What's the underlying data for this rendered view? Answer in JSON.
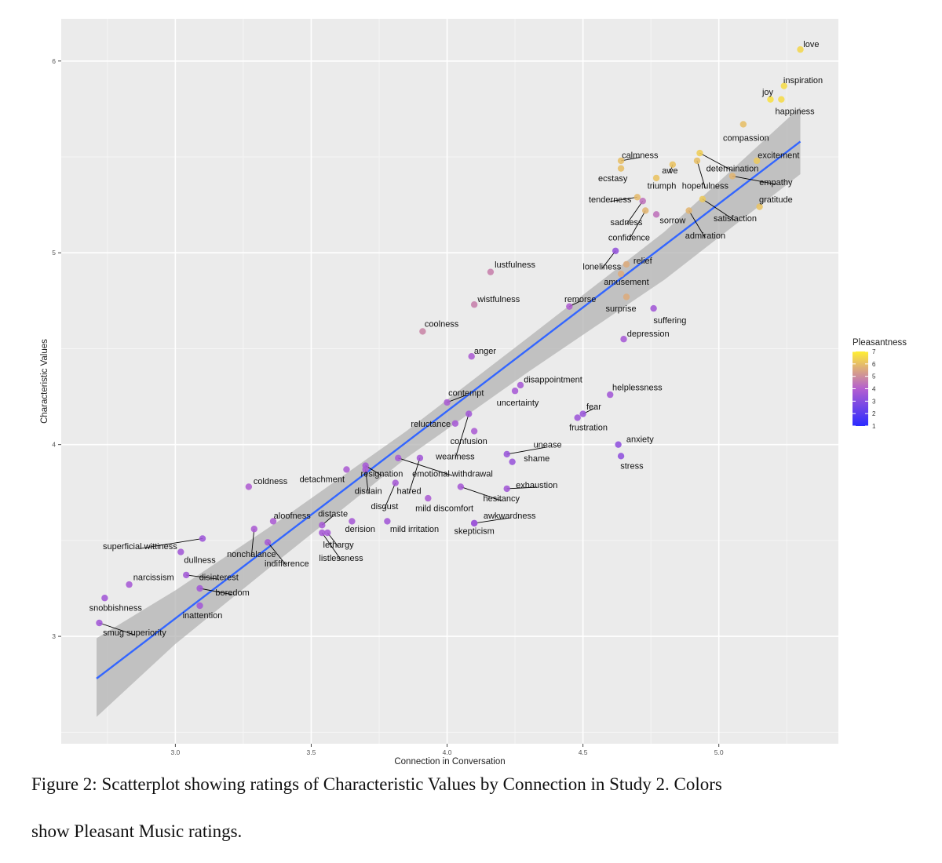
{
  "chart_data": {
    "type": "scatter",
    "xlabel": "Connection in Conversation",
    "ylabel": "Characteristic Values",
    "xlim": [
      2.58,
      5.44
    ],
    "ylim": [
      2.44,
      6.22
    ],
    "x_ticks": [
      3.0,
      3.5,
      4.0,
      4.5,
      5.0
    ],
    "x_tick_labels": [
      "3.0",
      "3.5",
      "4.0",
      "4.5",
      "5.0"
    ],
    "y_ticks": [
      3,
      4,
      5,
      6
    ],
    "y_tick_labels": [
      "3",
      "4",
      "5",
      "6"
    ],
    "grid": true,
    "legend": {
      "title": "Pleasantness",
      "position": "right",
      "ticks": [
        1,
        2,
        3,
        4,
        5,
        6,
        7
      ],
      "tick_labels": [
        "1",
        "2",
        "3",
        "4",
        "5",
        "6",
        "7"
      ],
      "color_low": "#2b2bff",
      "color_mid": "#b45fd0",
      "color_high": "#ffee33"
    },
    "colors": {
      "panel": "#ebebeb",
      "grid": "#ffffff",
      "fit_line": "#3366ff",
      "ribbon": "#b3b3b3",
      "leader": "#000000"
    },
    "fit": {
      "x_start": 2.71,
      "y_start": 2.78,
      "x_end": 5.3,
      "y_end": 5.58
    },
    "ribbon": [
      {
        "x": 2.71,
        "lo": 2.58,
        "hi": 2.99
      },
      {
        "x": 3.0,
        "lo": 2.96,
        "hi": 3.24
      },
      {
        "x": 3.4,
        "lo": 3.42,
        "hi": 3.62
      },
      {
        "x": 3.85,
        "lo": 3.93,
        "hi": 4.07
      },
      {
        "x": 4.3,
        "lo": 4.38,
        "hi": 4.56
      },
      {
        "x": 4.8,
        "lo": 4.86,
        "hi": 5.11
      },
      {
        "x": 5.3,
        "lo": 5.41,
        "hi": 5.76
      }
    ],
    "points": [
      {
        "label": "love",
        "x": 5.3,
        "y": 6.06,
        "pleasantness": 6.5,
        "lx": 5.34,
        "ly": 6.09,
        "anchor": "middle"
      },
      {
        "label": "inspiration",
        "x": 5.24,
        "y": 5.87,
        "pleasantness": 6.6,
        "lx": 5.31,
        "ly": 5.9,
        "anchor": "middle"
      },
      {
        "label": "joy",
        "x": 5.19,
        "y": 5.8,
        "pleasantness": 6.7,
        "lx": 5.18,
        "ly": 5.84,
        "anchor": "middle"
      },
      {
        "label": "happiness",
        "x": 5.23,
        "y": 5.8,
        "pleasantness": 6.6,
        "lx": 5.28,
        "ly": 5.74,
        "anchor": "middle"
      },
      {
        "label": "compassion",
        "x": 5.09,
        "y": 5.67,
        "pleasantness": 6.0,
        "lx": 5.1,
        "ly": 5.6,
        "anchor": "middle"
      },
      {
        "label": "excitement",
        "x": 5.14,
        "y": 5.48,
        "pleasantness": 6.2,
        "lx": 5.22,
        "ly": 5.51,
        "anchor": "middle"
      },
      {
        "label": "calmness",
        "x": 4.64,
        "y": 5.48,
        "pleasantness": 6.0,
        "lx": 4.71,
        "ly": 5.51,
        "anchor": "middle",
        "leader": true
      },
      {
        "label": "ecstasy",
        "x": 4.64,
        "y": 5.44,
        "pleasantness": 6.0,
        "lx": 4.61,
        "ly": 5.39,
        "anchor": "middle"
      },
      {
        "label": "awe",
        "x": 4.83,
        "y": 5.46,
        "pleasantness": 6.1,
        "lx": 4.82,
        "ly": 5.43,
        "anchor": "middle",
        "leader": true
      },
      {
        "label": "determination",
        "x": 4.93,
        "y": 5.52,
        "pleasantness": 6.3,
        "lx": 5.05,
        "ly": 5.44,
        "anchor": "middle",
        "leader": true
      },
      {
        "label": "hopefulness",
        "x": 4.92,
        "y": 5.48,
        "pleasantness": 6.0,
        "lx": 4.95,
        "ly": 5.35,
        "anchor": "middle",
        "leader": true
      },
      {
        "label": "triumph",
        "x": 4.77,
        "y": 5.39,
        "pleasantness": 6.1,
        "lx": 4.79,
        "ly": 5.35,
        "anchor": "middle"
      },
      {
        "label": "empathy",
        "x": 5.05,
        "y": 5.4,
        "pleasantness": 5.8,
        "lx": 5.21,
        "ly": 5.37,
        "anchor": "middle",
        "leader": true
      },
      {
        "label": "tenderness",
        "x": 4.7,
        "y": 5.29,
        "pleasantness": 5.9,
        "lx": 4.6,
        "ly": 5.28,
        "anchor": "middle",
        "leader": true
      },
      {
        "label": "gratitude",
        "x": 5.15,
        "y": 5.24,
        "pleasantness": 6.1,
        "lx": 5.21,
        "ly": 5.28,
        "anchor": "middle"
      },
      {
        "label": "sadness",
        "x": 4.72,
        "y": 5.27,
        "pleasantness": 4.4,
        "lx": 4.66,
        "ly": 5.16,
        "anchor": "middle",
        "leader": true
      },
      {
        "label": "sorrow",
        "x": 4.77,
        "y": 5.2,
        "pleasantness": 4.4,
        "lx": 4.83,
        "ly": 5.17,
        "anchor": "middle"
      },
      {
        "label": "satisfaction",
        "x": 4.94,
        "y": 5.28,
        "pleasantness": 6.2,
        "lx": 5.06,
        "ly": 5.18,
        "anchor": "middle",
        "leader": true
      },
      {
        "label": "confidence",
        "x": 4.73,
        "y": 5.22,
        "pleasantness": 5.8,
        "lx": 4.67,
        "ly": 5.08,
        "anchor": "middle",
        "leader": true
      },
      {
        "label": "admiration",
        "x": 4.89,
        "y": 5.22,
        "pleasantness": 5.8,
        "lx": 4.95,
        "ly": 5.09,
        "anchor": "middle",
        "leader": true
      },
      {
        "label": "lustfulness",
        "x": 4.16,
        "y": 4.9,
        "pleasantness": 4.7,
        "lx": 4.25,
        "ly": 4.94,
        "anchor": "middle"
      },
      {
        "label": "loneliness",
        "x": 4.62,
        "y": 5.01,
        "pleasantness": 3.3,
        "lx": 4.57,
        "ly": 4.93,
        "anchor": "middle",
        "leader": true
      },
      {
        "label": "relief",
        "x": 4.66,
        "y": 4.94,
        "pleasantness": 5.6,
        "lx": 4.72,
        "ly": 4.96,
        "anchor": "middle"
      },
      {
        "label": "amusement",
        "x": 4.64,
        "y": 4.89,
        "pleasantness": 5.6,
        "lx": 4.66,
        "ly": 4.85,
        "anchor": "middle"
      },
      {
        "label": "wistfulness",
        "x": 4.1,
        "y": 4.73,
        "pleasantness": 4.7,
        "lx": 4.19,
        "ly": 4.76,
        "anchor": "middle"
      },
      {
        "label": "remorse",
        "x": 4.45,
        "y": 4.72,
        "pleasantness": 3.9,
        "lx": 4.49,
        "ly": 4.76,
        "anchor": "middle",
        "leader": true
      },
      {
        "label": "surprise",
        "x": 4.66,
        "y": 4.77,
        "pleasantness": 5.6,
        "lx": 4.64,
        "ly": 4.71,
        "anchor": "middle"
      },
      {
        "label": "suffering",
        "x": 4.76,
        "y": 4.71,
        "pleasantness": 3.6,
        "lx": 4.82,
        "ly": 4.65,
        "anchor": "middle"
      },
      {
        "label": "coolness",
        "x": 3.91,
        "y": 4.59,
        "pleasantness": 4.8,
        "lx": 3.98,
        "ly": 4.63,
        "anchor": "middle"
      },
      {
        "label": "depression",
        "x": 4.65,
        "y": 4.55,
        "pleasantness": 3.7,
        "lx": 4.74,
        "ly": 4.58,
        "anchor": "middle"
      },
      {
        "label": "anger",
        "x": 4.09,
        "y": 4.46,
        "pleasantness": 3.8,
        "lx": 4.14,
        "ly": 4.49,
        "anchor": "middle"
      },
      {
        "label": "disappointment",
        "x": 4.27,
        "y": 4.31,
        "pleasantness": 3.7,
        "lx": 4.39,
        "ly": 4.34,
        "anchor": "middle"
      },
      {
        "label": "contempt",
        "x": 4.0,
        "y": 4.22,
        "pleasantness": 3.8,
        "lx": 4.07,
        "ly": 4.27,
        "anchor": "middle",
        "leader": true
      },
      {
        "label": "uncertainty",
        "x": 4.25,
        "y": 4.28,
        "pleasantness": 3.7,
        "lx": 4.26,
        "ly": 4.22,
        "anchor": "middle"
      },
      {
        "label": "helplessness",
        "x": 4.6,
        "y": 4.26,
        "pleasantness": 3.6,
        "lx": 4.7,
        "ly": 4.3,
        "anchor": "middle"
      },
      {
        "label": "fear",
        "x": 4.5,
        "y": 4.16,
        "pleasantness": 3.4,
        "lx": 4.54,
        "ly": 4.2,
        "anchor": "middle",
        "leader": true
      },
      {
        "label": "reluctance",
        "x": 4.03,
        "y": 4.11,
        "pleasantness": 3.7,
        "lx": 3.94,
        "ly": 4.11,
        "anchor": "middle"
      },
      {
        "label": "frustration",
        "x": 4.48,
        "y": 4.14,
        "pleasantness": 3.5,
        "lx": 4.52,
        "ly": 4.09,
        "anchor": "middle"
      },
      {
        "label": "confusion",
        "x": 4.1,
        "y": 4.07,
        "pleasantness": 3.8,
        "lx": 4.08,
        "ly": 4.02,
        "anchor": "middle"
      },
      {
        "label": "weariness",
        "x": 4.08,
        "y": 4.16,
        "pleasantness": 3.6,
        "lx": 4.03,
        "ly": 3.94,
        "anchor": "middle",
        "leader": true
      },
      {
        "label": "anxiety",
        "x": 4.63,
        "y": 4.0,
        "pleasantness": 3.2,
        "lx": 4.71,
        "ly": 4.03,
        "anchor": "middle"
      },
      {
        "label": "unease",
        "x": 4.22,
        "y": 3.95,
        "pleasantness": 3.4,
        "lx": 4.37,
        "ly": 4.0,
        "anchor": "middle",
        "leader": true
      },
      {
        "label": "shame",
        "x": 4.24,
        "y": 3.91,
        "pleasantness": 3.4,
        "lx": 4.33,
        "ly": 3.93,
        "anchor": "middle"
      },
      {
        "label": "stress",
        "x": 4.64,
        "y": 3.94,
        "pleasantness": 3.2,
        "lx": 4.68,
        "ly": 3.89,
        "anchor": "middle"
      },
      {
        "label": "detachment",
        "x": 3.63,
        "y": 3.87,
        "pleasantness": 3.8,
        "lx": 3.54,
        "ly": 3.82,
        "anchor": "middle"
      },
      {
        "label": "resignation",
        "x": 3.7,
        "y": 3.89,
        "pleasantness": 3.7,
        "lx": 3.76,
        "ly": 3.85,
        "anchor": "middle",
        "leader": true
      },
      {
        "label": "emotional withdrawal",
        "x": 3.82,
        "y": 3.93,
        "pleasantness": 3.7,
        "lx": 4.02,
        "ly": 3.85,
        "anchor": "middle",
        "leader": true
      },
      {
        "label": "coldness",
        "x": 3.27,
        "y": 3.78,
        "pleasantness": 3.9,
        "lx": 3.35,
        "ly": 3.81,
        "anchor": "middle"
      },
      {
        "label": "disdain",
        "x": 3.7,
        "y": 3.87,
        "pleasantness": 3.7,
        "lx": 3.71,
        "ly": 3.76,
        "anchor": "middle",
        "leader": true
      },
      {
        "label": "hatred",
        "x": 3.9,
        "y": 3.93,
        "pleasantness": 3.6,
        "lx": 3.86,
        "ly": 3.76,
        "anchor": "middle",
        "leader": true
      },
      {
        "label": "exhaustion",
        "x": 4.22,
        "y": 3.77,
        "pleasantness": 3.6,
        "lx": 4.33,
        "ly": 3.79,
        "anchor": "middle",
        "leader": true
      },
      {
        "label": "hesitancy",
        "x": 4.05,
        "y": 3.78,
        "pleasantness": 3.7,
        "lx": 4.2,
        "ly": 3.72,
        "anchor": "middle",
        "leader": true
      },
      {
        "label": "disgust",
        "x": 3.81,
        "y": 3.8,
        "pleasantness": 3.7,
        "lx": 3.77,
        "ly": 3.68,
        "anchor": "middle",
        "leader": true
      },
      {
        "label": "mild discomfort",
        "x": 3.93,
        "y": 3.72,
        "pleasantness": 3.8,
        "lx": 3.99,
        "ly": 3.67,
        "anchor": "middle"
      },
      {
        "label": "aloofness",
        "x": 3.36,
        "y": 3.6,
        "pleasantness": 3.8,
        "lx": 3.43,
        "ly": 3.63,
        "anchor": "middle"
      },
      {
        "label": "distaste",
        "x": 3.54,
        "y": 3.58,
        "pleasantness": 3.7,
        "lx": 3.58,
        "ly": 3.64,
        "anchor": "middle",
        "leader": true
      },
      {
        "label": "awkwardness",
        "x": 4.1,
        "y": 3.59,
        "pleasantness": 3.5,
        "lx": 4.23,
        "ly": 3.63,
        "anchor": "middle",
        "leader": true
      },
      {
        "label": "derision",
        "x": 3.65,
        "y": 3.6,
        "pleasantness": 3.7,
        "lx": 3.68,
        "ly": 3.56,
        "anchor": "middle"
      },
      {
        "label": "mild irritation",
        "x": 3.78,
        "y": 3.6,
        "pleasantness": 3.6,
        "lx": 3.88,
        "ly": 3.56,
        "anchor": "middle"
      },
      {
        "label": "skepticism",
        "x": 4.1,
        "y": 3.59,
        "pleasantness": 3.5,
        "lx": 4.1,
        "ly": 3.55,
        "anchor": "middle"
      },
      {
        "label": "superficial wittiness",
        "x": 3.1,
        "y": 3.51,
        "pleasantness": 3.5,
        "lx": 2.87,
        "ly": 3.47,
        "anchor": "middle",
        "leader": true
      },
      {
        "label": "nonchalance",
        "x": 3.29,
        "y": 3.56,
        "pleasantness": 3.8,
        "lx": 3.28,
        "ly": 3.43,
        "anchor": "middle",
        "leader": true
      },
      {
        "label": "lethargy",
        "x": 3.56,
        "y": 3.54,
        "pleasantness": 3.7,
        "lx": 3.6,
        "ly": 3.48,
        "anchor": "middle",
        "leader": true
      },
      {
        "label": "dullness",
        "x": 3.02,
        "y": 3.44,
        "pleasantness": 3.6,
        "lx": 3.09,
        "ly": 3.4,
        "anchor": "middle"
      },
      {
        "label": "indifference",
        "x": 3.34,
        "y": 3.49,
        "pleasantness": 3.7,
        "lx": 3.41,
        "ly": 3.38,
        "anchor": "middle",
        "leader": true
      },
      {
        "label": "listlessness",
        "x": 3.54,
        "y": 3.54,
        "pleasantness": 3.7,
        "lx": 3.61,
        "ly": 3.41,
        "anchor": "middle",
        "leader": true
      },
      {
        "label": "disinterest",
        "x": 3.04,
        "y": 3.32,
        "pleasantness": 3.6,
        "lx": 3.16,
        "ly": 3.31,
        "anchor": "middle",
        "leader": true
      },
      {
        "label": "narcissism",
        "x": 2.83,
        "y": 3.27,
        "pleasantness": 3.7,
        "lx": 2.92,
        "ly": 3.31,
        "anchor": "middle"
      },
      {
        "label": "boredom",
        "x": 3.09,
        "y": 3.25,
        "pleasantness": 3.6,
        "lx": 3.21,
        "ly": 3.23,
        "anchor": "middle",
        "leader": true
      },
      {
        "label": "snobbishness",
        "x": 2.74,
        "y": 3.2,
        "pleasantness": 3.6,
        "lx": 2.78,
        "ly": 3.15,
        "anchor": "middle"
      },
      {
        "label": "inattention",
        "x": 3.09,
        "y": 3.16,
        "pleasantness": 3.6,
        "lx": 3.1,
        "ly": 3.11,
        "anchor": "middle"
      },
      {
        "label": "smug superiority",
        "x": 2.72,
        "y": 3.07,
        "pleasantness": 3.6,
        "lx": 2.85,
        "ly": 3.02,
        "anchor": "middle",
        "leader": true
      }
    ]
  },
  "caption": {
    "line1": "Figure 2: Scatterplot showing ratings of Characteristic Values by Connection in Study 2. Colors",
    "line2": "show Pleasant Music ratings."
  }
}
